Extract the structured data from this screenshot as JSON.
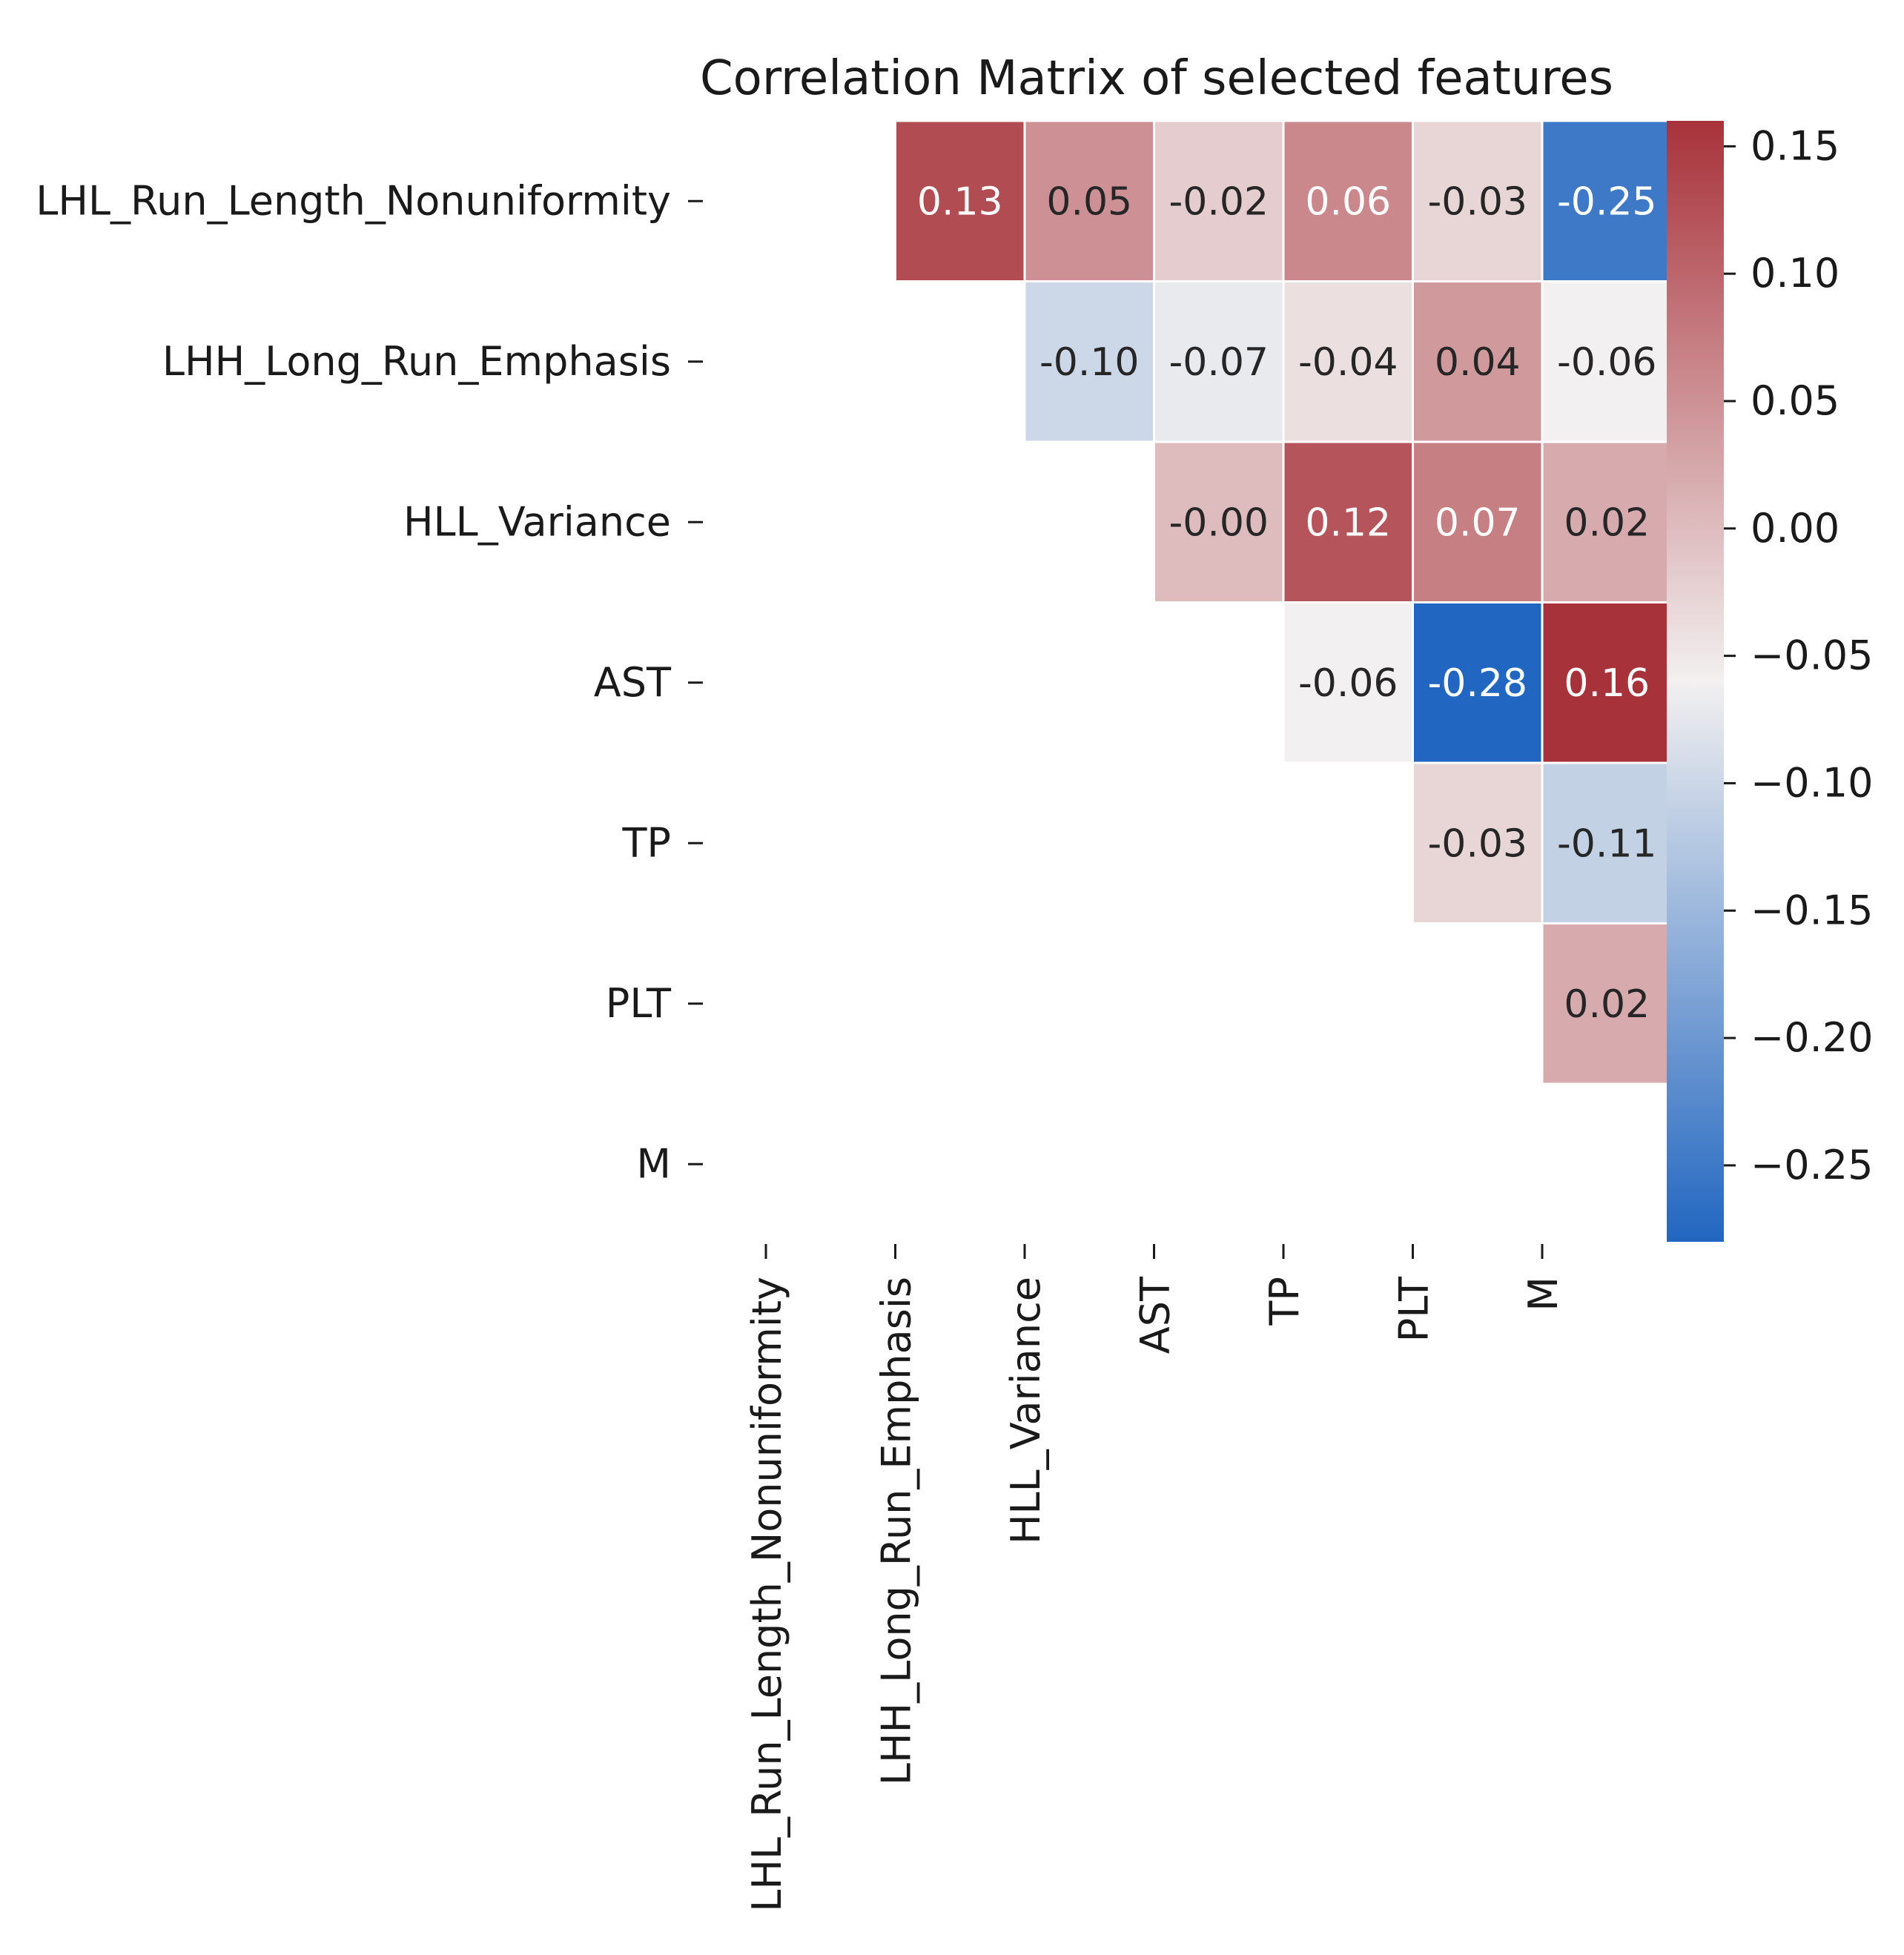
{
  "chart_data": {
    "type": "heatmap",
    "title": "Correlation Matrix of selected features",
    "labels": [
      "LHL_Run_Length_Nonuniformity",
      "LHH_Long_Run_Emphasis",
      "HLL_Variance",
      "AST",
      "TP",
      "PLT",
      "M"
    ],
    "mask": "lower-triangle-and-diagonal",
    "cells": [
      {
        "row": 0,
        "col": 1,
        "value": 0.13,
        "label": "0.13"
      },
      {
        "row": 0,
        "col": 2,
        "value": 0.05,
        "label": "0.05"
      },
      {
        "row": 0,
        "col": 3,
        "value": -0.02,
        "label": "-0.02"
      },
      {
        "row": 0,
        "col": 4,
        "value": 0.06,
        "label": "0.06"
      },
      {
        "row": 0,
        "col": 5,
        "value": -0.03,
        "label": "-0.03"
      },
      {
        "row": 0,
        "col": 6,
        "value": -0.25,
        "label": "-0.25"
      },
      {
        "row": 1,
        "col": 2,
        "value": -0.1,
        "label": "-0.10"
      },
      {
        "row": 1,
        "col": 3,
        "value": -0.07,
        "label": "-0.07"
      },
      {
        "row": 1,
        "col": 4,
        "value": -0.04,
        "label": "-0.04"
      },
      {
        "row": 1,
        "col": 5,
        "value": 0.04,
        "label": "0.04"
      },
      {
        "row": 1,
        "col": 6,
        "value": -0.06,
        "label": "-0.06"
      },
      {
        "row": 2,
        "col": 3,
        "value": -0.0,
        "label": "-0.00"
      },
      {
        "row": 2,
        "col": 4,
        "value": 0.12,
        "label": "0.12"
      },
      {
        "row": 2,
        "col": 5,
        "value": 0.07,
        "label": "0.07"
      },
      {
        "row": 2,
        "col": 6,
        "value": 0.02,
        "label": "0.02"
      },
      {
        "row": 3,
        "col": 4,
        "value": -0.06,
        "label": "-0.06"
      },
      {
        "row": 3,
        "col": 5,
        "value": -0.28,
        "label": "-0.28"
      },
      {
        "row": 3,
        "col": 6,
        "value": 0.16,
        "label": "0.16"
      },
      {
        "row": 4,
        "col": 5,
        "value": -0.03,
        "label": "-0.03"
      },
      {
        "row": 4,
        "col": 6,
        "value": -0.11,
        "label": "-0.11"
      },
      {
        "row": 5,
        "col": 6,
        "value": 0.02,
        "label": "0.02"
      }
    ],
    "colormap": "vlag (blue to red, center near -0.06)",
    "colorbar": {
      "vmin": -0.28,
      "vmax": 0.16,
      "center": -0.06,
      "ticks": [
        0.15,
        0.1,
        0.05,
        0.0,
        -0.05,
        -0.1,
        -0.15,
        -0.2,
        -0.25
      ],
      "tick_labels": [
        "0.15",
        "0.10",
        "0.05",
        "0.00",
        "−0.05",
        "−0.10",
        "−0.15",
        "−0.20",
        "−0.25"
      ]
    },
    "colors": {
      "low": "#2166c0",
      "mid": "#f2f0f0",
      "high": "#a8323a"
    }
  }
}
